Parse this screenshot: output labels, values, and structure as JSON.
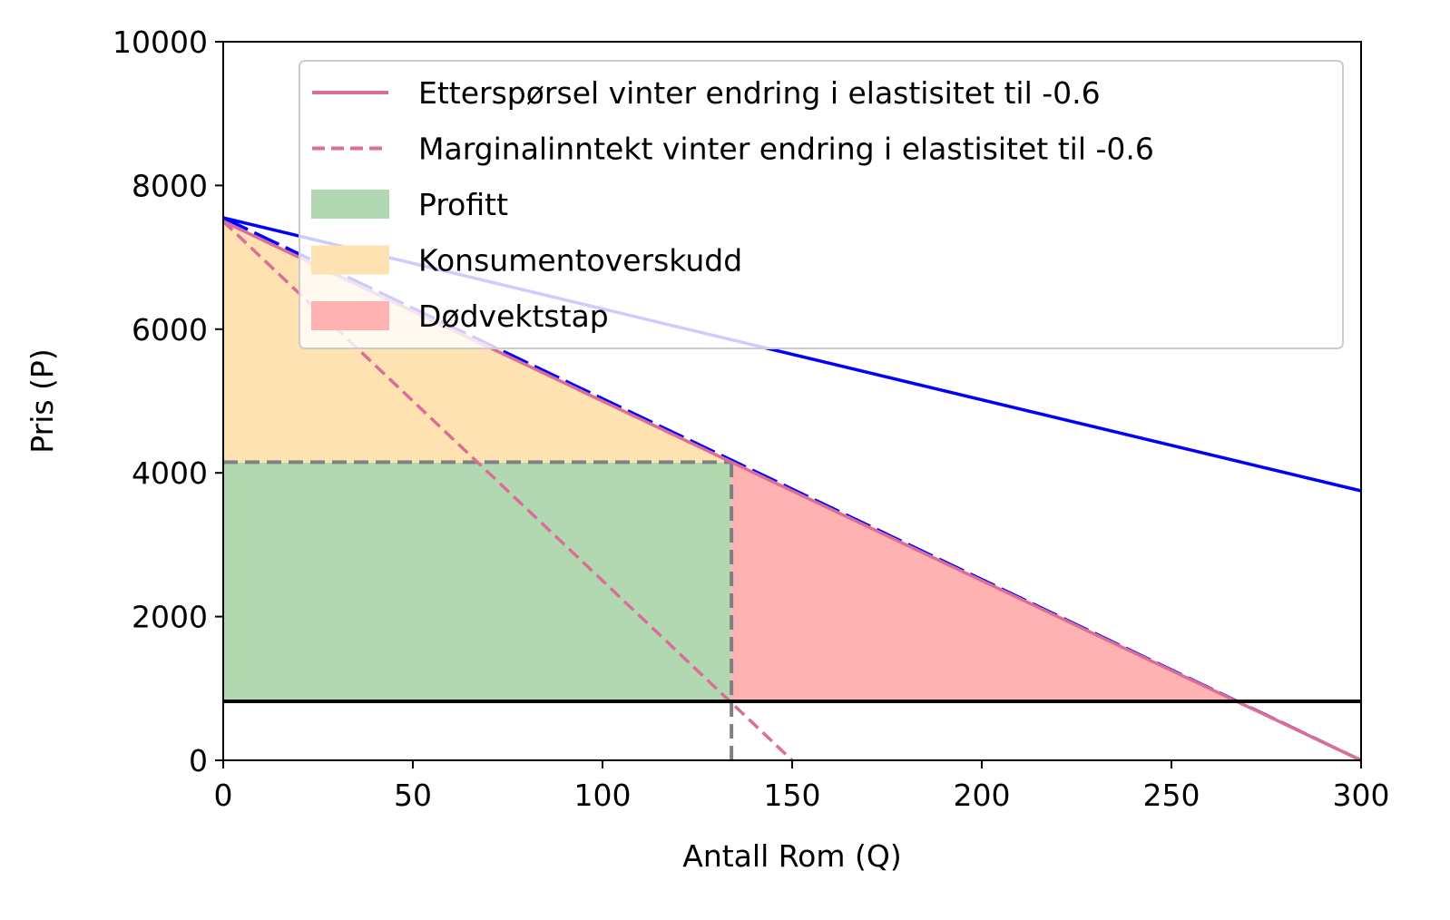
{
  "chart_data": {
    "type": "line",
    "title": "",
    "xlabel": "Antall Rom (Q)",
    "ylabel": "Pris (P)",
    "xlim": [
      0,
      300
    ],
    "ylim": [
      0,
      10000
    ],
    "xticks": [
      0,
      50,
      100,
      150,
      200,
      250,
      300
    ],
    "yticks": [
      0,
      2000,
      4000,
      6000,
      8000,
      10000
    ],
    "grid": false,
    "legend_position": "top-right",
    "colors": {
      "demand_original": "#0000ff",
      "pink": "#dc6e96",
      "marginal_cost": "#000000",
      "guide": "#808080",
      "profit_fill": "#b2d8b2",
      "consumer_surplus_fill": "#ffe2b2",
      "deadweight_fill": "#ffb2b2"
    },
    "series": [
      {
        "name": "Etterspørsel vinter endring i elastisitet til -0.6",
        "style": "solid",
        "color": "#dc6e96",
        "x": [
          0,
          300
        ],
        "y": [
          7500,
          0
        ]
      },
      {
        "name": "Marginalinntekt vinter endring i elastisitet til -0.6",
        "style": "dashed",
        "color": "#dc6e96",
        "x": [
          0,
          150
        ],
        "y": [
          7500,
          0
        ]
      },
      {
        "style": "solid",
        "color": "#0000ff",
        "x": [
          0,
          300
        ],
        "y": [
          7550,
          3750
        ]
      },
      {
        "style": "long-dashed",
        "color": "#0000ff",
        "x": [
          0,
          300
        ],
        "y": [
          7550,
          0
        ]
      },
      {
        "style": "solid",
        "color": "#000000",
        "x": [
          0,
          300
        ],
        "y": [
          820,
          820
        ]
      }
    ],
    "areas": [
      {
        "name": "Profitt",
        "color": "#b2d8b2",
        "x": [
          0,
          134,
          134,
          0
        ],
        "y": [
          820,
          820,
          4150,
          4150
        ]
      },
      {
        "name": "Konsumentoverskudd",
        "color": "#ffe2b2",
        "x": [
          0,
          134,
          0
        ],
        "y": [
          7500,
          4150,
          4150
        ]
      },
      {
        "name": "Dødvektstap",
        "color": "#ffb2b2",
        "x": [
          134,
          267,
          134
        ],
        "y": [
          4150,
          820,
          820
        ]
      }
    ],
    "guides": [
      {
        "style": "dashed",
        "color": "#808080",
        "x": [
          0,
          134
        ],
        "y": [
          4150,
          4150
        ]
      },
      {
        "style": "dashed",
        "color": "#808080",
        "x": [
          134,
          134
        ],
        "y": [
          0,
          4150
        ]
      }
    ]
  }
}
